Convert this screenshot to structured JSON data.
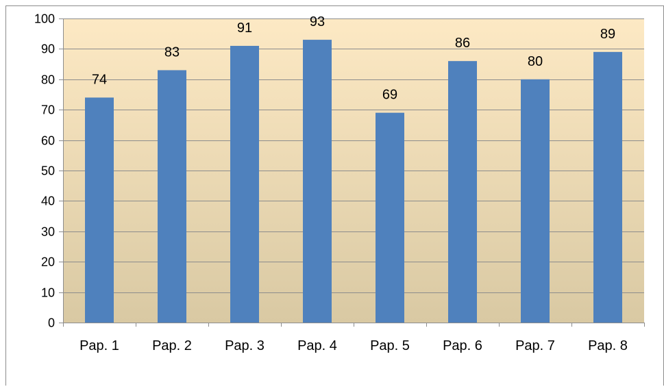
{
  "chart_data": {
    "type": "bar",
    "title": "",
    "xlabel": "",
    "ylabel": "",
    "categories": [
      "Pap. 1",
      "Pap. 2",
      "Pap. 3",
      "Pap. 4",
      "Pap. 5",
      "Pap. 6",
      "Pap. 7",
      "Pap. 8"
    ],
    "values": [
      74,
      83,
      91,
      93,
      69,
      86,
      80,
      89
    ],
    "value_labels": [
      "74",
      "83",
      "91",
      "93",
      "69",
      "86",
      "80",
      "89"
    ],
    "ylim": [
      0,
      100
    ],
    "yticks": [
      0,
      10,
      20,
      30,
      40,
      50,
      60,
      70,
      80,
      90,
      100
    ],
    "ytick_labels": [
      "0",
      "10",
      "20",
      "30",
      "40",
      "50",
      "60",
      "70",
      "80",
      "90",
      "100"
    ],
    "grid": true,
    "legend": "none",
    "colors": {
      "bar": "#4f81bd",
      "background_top": "#fde9c4",
      "background_bottom": "#d9c9a3",
      "gridline": "#8c8c8c",
      "axis": "#8c8c8c",
      "text": "#000000"
    }
  }
}
